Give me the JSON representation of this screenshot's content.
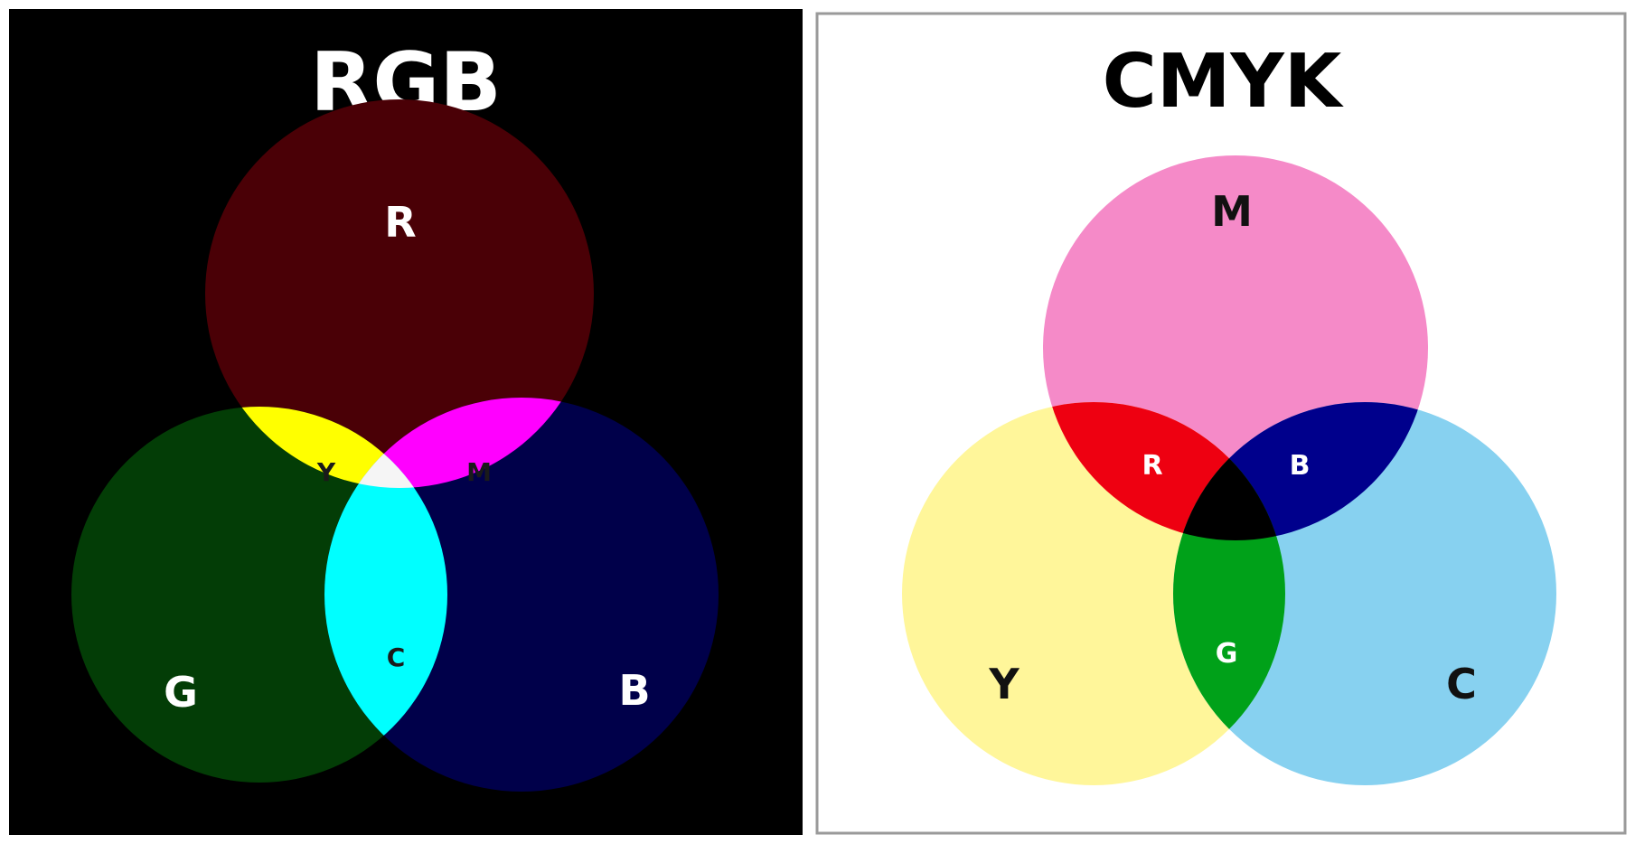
{
  "rgb": {
    "title": "RGB",
    "background": "#000000",
    "circles": {
      "red": {
        "label": "R",
        "color": "#4a0006"
      },
      "green": {
        "label": "G",
        "color": "#033d06"
      },
      "blue": {
        "label": "B",
        "color": "#00004a"
      }
    },
    "overlaps": {
      "yellow": {
        "label": "Y",
        "color": "#ffff00"
      },
      "magenta": {
        "label": "M",
        "color": "#ff00ff"
      },
      "cyan": {
        "label": "C",
        "color": "#00ffff"
      },
      "white": {
        "label": "",
        "color": "#f5f5f5"
      }
    }
  },
  "cmyk": {
    "title": "CMYK",
    "background": "#ffffff",
    "border": "#9a9a9a",
    "circles": {
      "magenta": {
        "label": "M",
        "color": "#f58ac8"
      },
      "yellow": {
        "label": "Y",
        "color": "#fff69a"
      },
      "cyan": {
        "label": "C",
        "color": "#87d1f0"
      }
    },
    "overlaps": {
      "red": {
        "label": "R",
        "color": "#ee0011"
      },
      "blue": {
        "label": "B",
        "color": "#00008c"
      },
      "green": {
        "label": "G",
        "color": "#00a119"
      },
      "black": {
        "label": "",
        "color": "#000000"
      }
    }
  }
}
